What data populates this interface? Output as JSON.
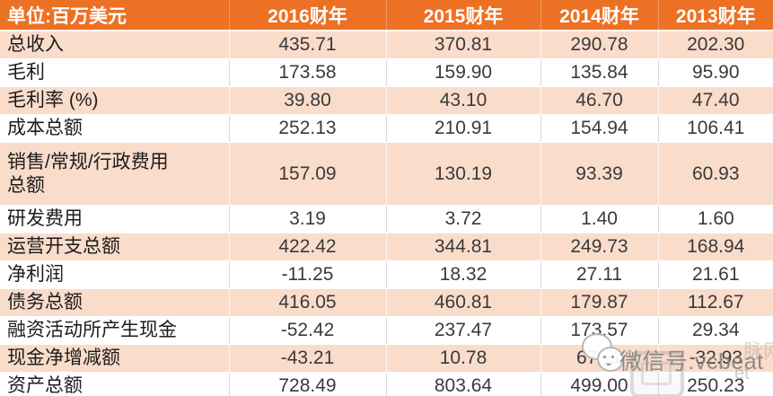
{
  "table": {
    "unit_header": "单位:百万美元",
    "year_headers": [
      "2016财年",
      "2015财年",
      "2014财年",
      "2013财年"
    ],
    "rows": [
      {
        "label": "总收入",
        "values": [
          "435.71",
          "370.81",
          "290.78",
          "202.30"
        ]
      },
      {
        "label": "毛利",
        "values": [
          "173.58",
          "159.90",
          "135.84",
          "95.90"
        ]
      },
      {
        "label": "毛利率 (%)",
        "values": [
          "39.80",
          "43.10",
          "46.70",
          "47.40"
        ]
      },
      {
        "label": "成本总额",
        "values": [
          "252.13",
          "210.91",
          "154.94",
          "106.41"
        ]
      },
      {
        "label": "销售/常规/行政费用\n总额",
        "values": [
          "157.09",
          "130.19",
          "93.39",
          "60.93"
        ]
      },
      {
        "label": "研发费用",
        "values": [
          "3.19",
          "3.72",
          "1.40",
          "1.60"
        ]
      },
      {
        "label": "运营开支总额",
        "values": [
          "422.42",
          "344.81",
          "249.73",
          "168.94"
        ]
      },
      {
        "label": "净利润",
        "values": [
          "-11.25",
          "18.32",
          "27.11",
          "21.61"
        ]
      },
      {
        "label": "债务总额",
        "values": [
          "416.05",
          "460.81",
          "179.87",
          "112.67"
        ]
      },
      {
        "label": "融资活动所产生现金",
        "values": [
          "-52.42",
          "237.47",
          "173.57",
          "29.34"
        ]
      },
      {
        "label": "现金净增减额",
        "values": [
          "-43.21",
          "10.78",
          "67.11",
          "-32.93"
        ]
      },
      {
        "label": "资产总额",
        "values": [
          "728.49",
          "803.64",
          "499.00",
          "250.23"
        ]
      }
    ]
  },
  "watermark": {
    "text": "微信号:vcbeat",
    "fragment_right_top": "脉网",
    "fragment_right_bottom": "et"
  },
  "colors": {
    "header_bg": "#ED7124",
    "row_pink": "#FADCCB",
    "row_white": "#FFFFFF",
    "header_text": "#FFFFFF",
    "number_text": "#3A3A3A",
    "label_text": "#1C1C1C",
    "watermark_gray": "#808080"
  },
  "chart_data": {
    "type": "table",
    "title": "单位:百万美元",
    "columns": [
      "2016财年",
      "2015财年",
      "2014财年",
      "2013财年"
    ],
    "rows": [
      {
        "label": "总收入",
        "values": [
          435.71,
          370.81,
          290.78,
          202.3
        ]
      },
      {
        "label": "毛利",
        "values": [
          173.58,
          159.9,
          135.84,
          95.9
        ]
      },
      {
        "label": "毛利率 (%)",
        "values": [
          39.8,
          43.1,
          46.7,
          47.4
        ]
      },
      {
        "label": "成本总额",
        "values": [
          252.13,
          210.91,
          154.94,
          106.41
        ]
      },
      {
        "label": "销售/常规/行政费用总额",
        "values": [
          157.09,
          130.19,
          93.39,
          60.93
        ]
      },
      {
        "label": "研发费用",
        "values": [
          3.19,
          3.72,
          1.4,
          1.6
        ]
      },
      {
        "label": "运营开支总额",
        "values": [
          422.42,
          344.81,
          249.73,
          168.94
        ]
      },
      {
        "label": "净利润",
        "values": [
          -11.25,
          18.32,
          27.11,
          21.61
        ]
      },
      {
        "label": "债务总额",
        "values": [
          416.05,
          460.81,
          179.87,
          112.67
        ]
      },
      {
        "label": "融资活动所产生现金",
        "values": [
          -52.42,
          237.47,
          173.57,
          29.34
        ]
      },
      {
        "label": "现金净增减额",
        "values": [
          -43.21,
          10.78,
          67.11,
          -32.93
        ]
      },
      {
        "label": "资产总额",
        "values": [
          728.49,
          803.64,
          499.0,
          250.23
        ]
      }
    ]
  }
}
